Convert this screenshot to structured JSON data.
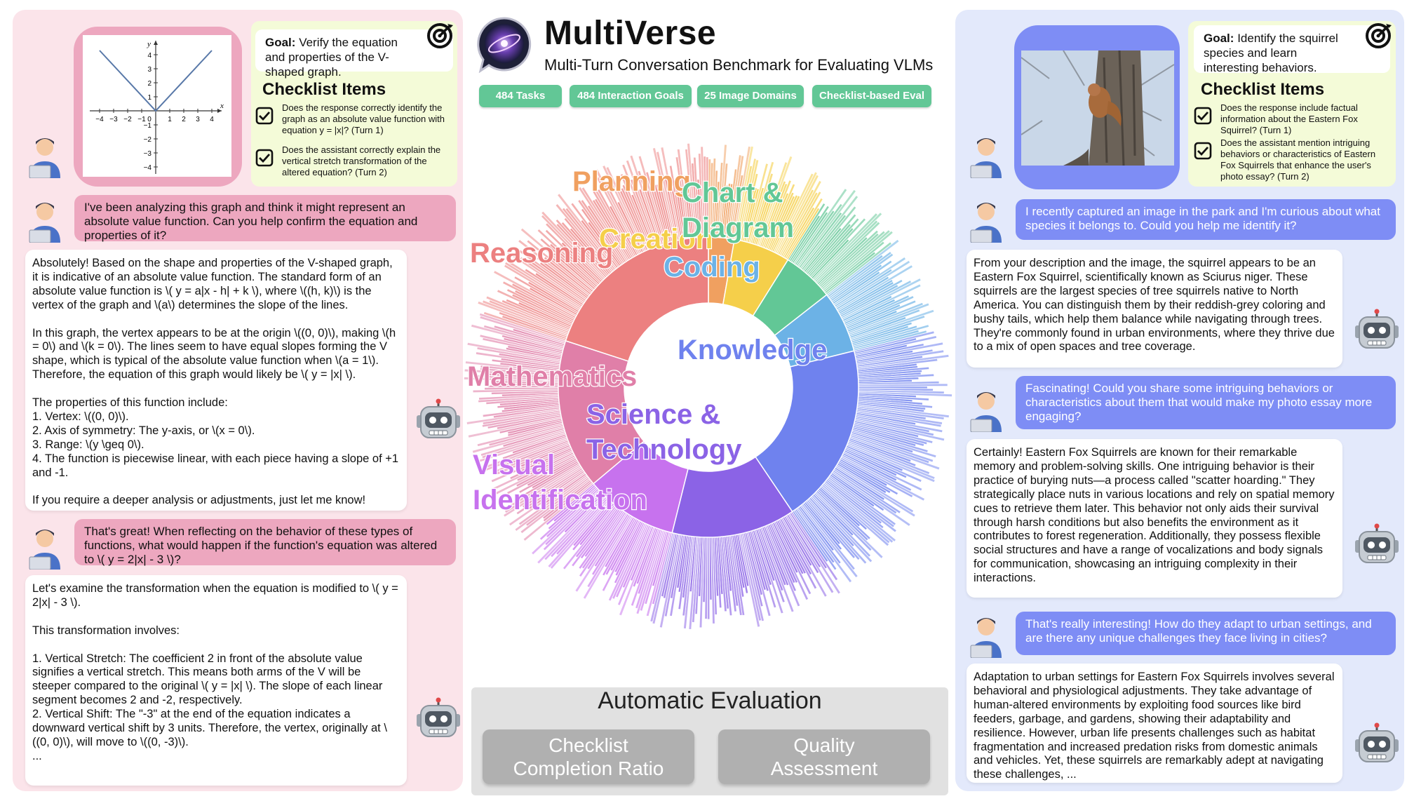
{
  "header": {
    "title": "MultiVerse",
    "subtitle": "Multi-Turn Conversation Benchmark for Evaluating VLMs",
    "pills": [
      "484 Tasks",
      "484 Interaction Goals",
      "25 Image Domains",
      "Checklist-based Eval"
    ]
  },
  "left": {
    "goal_label": "Goal:",
    "goal_text": "Verify the equation and properties of the V-shaped graph.",
    "checklist_title": "Checklist Items",
    "checklist": [
      "Does the response correctly identify the graph as an absolute value function with equation y = |x|? (Turn 1)",
      "Does the assistant correctly explain the vertical stretch transformation of the altered equation? (Turn 2)"
    ],
    "graph": {
      "x_ticks": [
        "−4",
        "−3",
        "−2",
        "−1",
        "0",
        "1",
        "2",
        "3",
        "4"
      ],
      "y_ticks": [
        "4",
        "3",
        "2",
        "1",
        "−1",
        "−2",
        "−3",
        "−4"
      ],
      "x_label": "x",
      "y_label": "y"
    },
    "user1": "I've been analyzing this graph and think it might represent an absolute value function. Can you help confirm the equation and properties of it?",
    "bot1": "Absolutely! Based on the shape and properties of the V-shaped graph, it is indicative of an absolute value function. The standard form of an absolute value function is \\( y = a|x - h| + k \\), where \\((h, k)\\) is the vertex of the graph and \\(a\\) determines the slope of the lines.\n\nIn this graph, the vertex appears to be at the origin \\((0, 0)\\), making \\(h = 0\\) and \\(k = 0\\). The lines seem to have equal slopes forming the V shape, which is typical of the absolute value function when \\(a = 1\\). Therefore, the equation of this graph would likely be \\( y = |x| \\).\n\nThe properties of this function include:\n1. Vertex: \\((0, 0)\\).\n2. Axis of symmetry: The y-axis, or \\(x = 0\\).\n3. Range: \\(y \\geq 0\\).\n4. The function is piecewise linear, with each piece having a slope of +1 and -1.\n\nIf you require a deeper analysis or adjustments, just let me know!",
    "user2": "That's great! When reflecting on the behavior of these types of functions, what would happen if the function's equation was altered to \\( y = 2|x| - 3 \\)?",
    "bot2": "Let's examine the transformation when the equation is modified to \\( y = 2|x| - 3 \\).\n\nThis transformation involves:\n\n1. Vertical Stretch: The coefficient 2 in front of the absolute value signifies a vertical stretch. This means both arms of the V will be steeper compared to the original \\( y = |x| \\). The slope of each linear segment becomes 2 and -2, respectively.\n2. Vertical Shift: The \"-3\" at the end of the equation indicates a downward vertical shift by 3 units. Therefore, the vertex, originally at \\((0, 0)\\), will move to \\((0, -3)\\).\n..."
  },
  "right": {
    "goal_label": "Goal:",
    "goal_text": "Identify the squirrel species and learn interesting behaviors.",
    "checklist_title": "Checklist Items",
    "checklist": [
      "Does the response include factual information about the Eastern Fox Squirrel? (Turn 1)",
      "Does the assistant mention intriguing behaviors or characteristics of Eastern Fox Squirrels that enhance the user's photo essay? (Turn 2)"
    ],
    "user1": "I recently captured an image in the park and I'm curious about what species it belongs to. Could you help me identify it?",
    "bot1": "From your description and the image, the squirrel appears to be an Eastern Fox Squirrel, scientifically known as Sciurus niger. These squirrels are the largest species of tree squirrels native to North America. You can distinguish them by their reddish-grey coloring and bushy tails, which help them balance while navigating through trees. They're commonly found in urban environments, where they thrive due to a mix of open spaces and tree coverage.",
    "user2": "Fascinating! Could you share some intriguing behaviors or characteristics about them that would make my photo essay more engaging?",
    "bot2": "Certainly! Eastern Fox Squirrels are known for their remarkable memory and problem-solving skills. One intriguing behavior is their practice of burying nuts—a process called \"scatter hoarding.\" They strategically place nuts in various locations and rely on spatial memory cues to retrieve them later. This behavior not only aids their survival through harsh conditions but also benefits the environment as it contributes to forest regeneration. Additionally, they possess flexible social structures and have a range of vocalizations and body signals for communication, showcasing an intriguing complexity in their interactions.",
    "user3": "That's really interesting! How do they adapt to urban settings, and are there any unique challenges they face living in cities?",
    "bot3": "Adaptation to urban settings for Eastern Fox Squirrels involves several behavioral and physiological adjustments. They take advantage of human-altered environments by exploiting food sources like bird feeders, garbage, and gardens, showing their adaptability and resilience. However, urban life presents challenges such as habitat fragmentation and increased predation risks from domestic animals and vehicles. Yet, these squirrels are remarkably adept at navigating these challenges,  ..."
  },
  "sunburst": {
    "categories": [
      {
        "name": "Planning",
        "lines": [
          "Planning"
        ],
        "color": "#f0a060"
      },
      {
        "name": "Creation",
        "lines": [
          "Creation"
        ],
        "color": "#f5cf4a"
      },
      {
        "name": "Chart & Diagram",
        "lines": [
          "Chart &",
          "Diagram"
        ],
        "color": "#62c796"
      },
      {
        "name": "Coding",
        "lines": [
          "Coding"
        ],
        "color": "#6cb2e6"
      },
      {
        "name": "Knowledge",
        "lines": [
          "Knowledge"
        ],
        "color": "#6f82ee"
      },
      {
        "name": "Science & Technology",
        "lines": [
          "Science &",
          "Technology"
        ],
        "color": "#8b63e6"
      },
      {
        "name": "Visual Identification",
        "lines": [
          "Visual",
          "Identification"
        ],
        "color": "#c772ee"
      },
      {
        "name": "Mathematics",
        "lines": [
          "Mathematics"
        ],
        "color": "#e07fa8"
      },
      {
        "name": "Reasoning",
        "lines": [
          "Reasoning"
        ],
        "color": "#ec8080"
      }
    ]
  },
  "evaluation": {
    "title": "Automatic Evaluation",
    "buttons": [
      [
        "Checklist",
        "Completion Ratio"
      ],
      [
        "Quality",
        "Assessment"
      ]
    ]
  }
}
